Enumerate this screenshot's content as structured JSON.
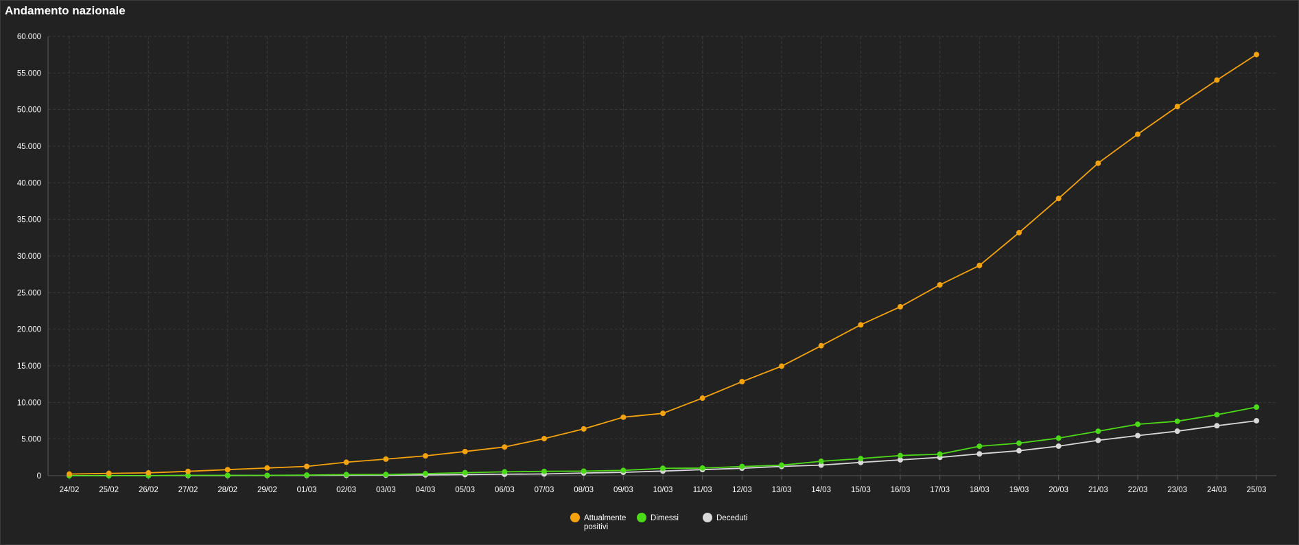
{
  "header": {
    "title": "Andamento nazionale"
  },
  "colors": {
    "background": "#222222",
    "grid": "#3a3a3a",
    "axis": "#5a5a5a",
    "text": "#ffffff"
  },
  "chart_data": {
    "type": "line",
    "title": "Andamento nazionale",
    "xlabel": "",
    "ylabel": "",
    "ylim": [
      0,
      60000
    ],
    "y_ticks": [
      0,
      5000,
      10000,
      15000,
      20000,
      25000,
      30000,
      35000,
      40000,
      45000,
      50000,
      55000,
      60000
    ],
    "y_tick_labels": [
      "0",
      "5.000",
      "10.000",
      "15.000",
      "20.000",
      "25.000",
      "30.000",
      "35.000",
      "40.000",
      "45.000",
      "50.000",
      "55.000",
      "60.000"
    ],
    "grid": true,
    "legend_position": "bottom-center",
    "categories": [
      "24/02",
      "25/02",
      "26/02",
      "27/02",
      "28/02",
      "29/02",
      "01/03",
      "02/03",
      "03/03",
      "04/03",
      "05/03",
      "06/03",
      "07/03",
      "08/03",
      "09/03",
      "10/03",
      "11/03",
      "12/03",
      "13/03",
      "14/03",
      "15/03",
      "16/03",
      "17/03",
      "18/03",
      "19/03",
      "20/03",
      "21/03",
      "22/03",
      "23/03",
      "24/03",
      "25/03"
    ],
    "series": [
      {
        "name": "Attualmente positivi",
        "legend_lines": [
          "Attualmente",
          "positivi"
        ],
        "color": "#f5a30c",
        "values": [
          221,
          311,
          385,
          588,
          821,
          1049,
          1266,
          1835,
          2263,
          2706,
          3296,
          3916,
          5061,
          6387,
          7985,
          8514,
          10590,
          12839,
          14955,
          17750,
          20603,
          23073,
          26062,
          28710,
          33190,
          37860,
          42681,
          46638,
          50418,
          54030,
          57521
        ]
      },
      {
        "name": "Dimessi",
        "legend_lines": [
          "Dimessi"
        ],
        "color": "#4cd917",
        "values": [
          1,
          1,
          3,
          45,
          46,
          50,
          83,
          149,
          160,
          276,
          414,
          523,
          589,
          622,
          724,
          1004,
          1045,
          1258,
          1439,
          1966,
          2335,
          2749,
          2941,
          4025,
          4440,
          5129,
          6072,
          7024,
          7432,
          8326,
          9362
        ]
      },
      {
        "name": "Deceduti",
        "legend_lines": [
          "Deceduti"
        ],
        "color": "#d8d8d8",
        "values": [
          7,
          10,
          12,
          17,
          21,
          29,
          34,
          52,
          79,
          107,
          148,
          197,
          233,
          366,
          463,
          631,
          827,
          1016,
          1266,
          1441,
          1809,
          2158,
          2503,
          2978,
          3405,
          4032,
          4825,
          5476,
          6077,
          6820,
          7503
        ]
      }
    ]
  }
}
